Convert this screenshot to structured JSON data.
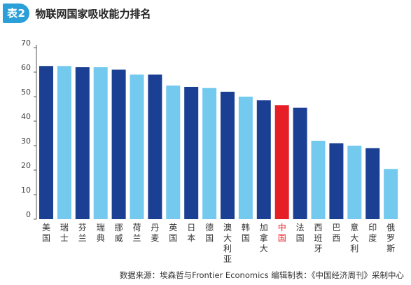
{
  "header": {
    "badge": "表2",
    "title": "物联网国家吸收能力排名"
  },
  "source": "数据来源：埃森哲与Frontier Economics 编辑制表：《中国经济周刊》采制中心",
  "colors": {
    "dark": "#1a3f93",
    "light": "#74c9ee",
    "highlight": "#e61e25",
    "badge": "#2a9fd8"
  },
  "chart_data": {
    "type": "bar",
    "title": "物联网国家吸收能力排名",
    "xlabel": "",
    "ylabel": "",
    "ylim": [
      0,
      70
    ],
    "yticks": [
      0,
      10,
      20,
      30,
      40,
      50,
      60,
      70
    ],
    "grid": false,
    "categories": [
      "美国",
      "瑞士",
      "芬兰",
      "瑞典",
      "挪威",
      "荷兰",
      "丹麦",
      "英国",
      "日本",
      "德国",
      "澳大利亚",
      "韩国",
      "加拿大",
      "中国",
      "法国",
      "西班牙",
      "巴西",
      "意大利",
      "印度",
      "俄罗斯"
    ],
    "values": [
      62.5,
      62.5,
      62,
      62,
      61,
      59,
      59,
      54.5,
      54,
      53.5,
      52,
      50,
      48.5,
      46.5,
      45.5,
      32,
      31,
      30,
      29,
      20.5
    ],
    "bar_colors": [
      "dark",
      "light",
      "dark",
      "light",
      "dark",
      "light",
      "dark",
      "light",
      "dark",
      "light",
      "dark",
      "light",
      "dark",
      "highlight",
      "dark",
      "light",
      "dark",
      "light",
      "dark",
      "light"
    ]
  }
}
